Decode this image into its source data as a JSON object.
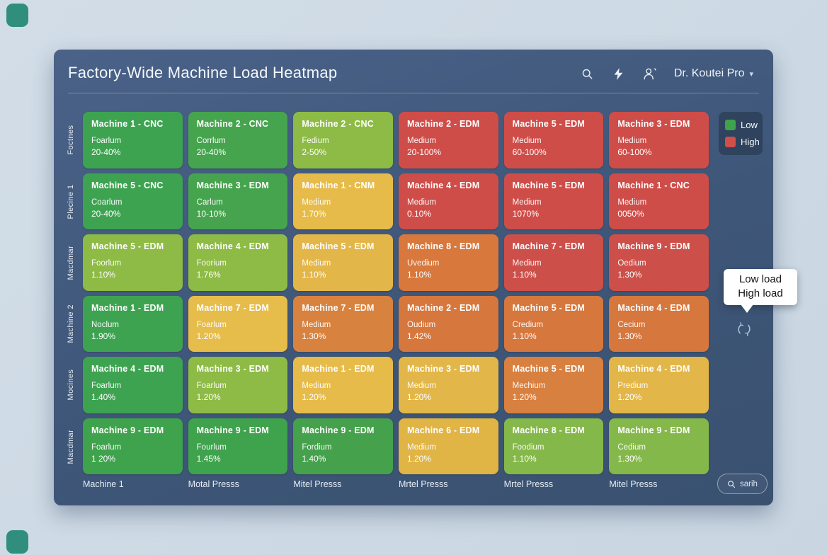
{
  "header": {
    "title": "Factory-Wide Machine Load Heatmap",
    "user_menu": {
      "label": "Dr. Koutei Pro"
    },
    "icons": [
      "search-icon",
      "bolt-icon",
      "user-icon",
      "caret-down-icon"
    ]
  },
  "legend": {
    "items": [
      {
        "label": "Low",
        "color": "#3fa24c"
      },
      {
        "label": "High",
        "color": "#d04f4b"
      }
    ]
  },
  "tooltip": {
    "lines": [
      "Low load",
      "High load"
    ]
  },
  "footer": {
    "search_button_label": "sarih"
  },
  "colors": {
    "background": "#cdd9e4",
    "panel": "#3e5678",
    "accent_teal": "#2f8f7c",
    "green": "#3ea351",
    "light_green": "#8dbb45",
    "gold": "#e6bb49",
    "orange": "#d87a3e",
    "red": "#cf4d49"
  },
  "heatmap": {
    "row_labels": [
      "Foctnes",
      "Plecine 1",
      "Macdmar",
      "Machine 2",
      "Mocines",
      "Macdmar"
    ],
    "col_labels": [
      "Machine 1",
      "Motal Presss",
      "Mitel Presss",
      "Mrtel Presss",
      "Mrtel Presss",
      "Mitel Presss"
    ],
    "cells": [
      [
        {
          "title": "Machine 1 - CNC",
          "subtitle": "Foarlum",
          "value": "20-40%",
          "color": "#3ea351"
        },
        {
          "title": "Machine 2 - CNC",
          "subtitle": "Corrlum",
          "value": "20-40%",
          "color": "#46a44e"
        },
        {
          "title": "Machine 2 - CNC",
          "subtitle": "Fedium",
          "value": "2-50%",
          "color": "#8dbb45"
        },
        {
          "title": "Machine 2 - EDM",
          "subtitle": "Medium",
          "value": "20-100%",
          "color": "#cf4d49"
        },
        {
          "title": "Machine 5 - EDM",
          "subtitle": "Medium",
          "value": "60-100%",
          "color": "#cf4d49"
        },
        {
          "title": "Machine 3 - EDM",
          "subtitle": "Medium",
          "value": "60-100%",
          "color": "#cf4d49"
        }
      ],
      [
        {
          "title": "Machine 5 - CNC",
          "subtitle": "Coarlum",
          "value": "20-40%",
          "color": "#3ea351"
        },
        {
          "title": "Machine 3 - EDM",
          "subtitle": "Carlum",
          "value": "10-10%",
          "color": "#46a44e"
        },
        {
          "title": "Machine 1 - CNM",
          "subtitle": "Medium",
          "value": "1.70%",
          "color": "#e6bb49"
        },
        {
          "title": "Machine 4 - EDM",
          "subtitle": "Medium",
          "value": "0.10%",
          "color": "#cf4d49"
        },
        {
          "title": "Machine 5 - EDM",
          "subtitle": "Medium",
          "value": "1070%",
          "color": "#cf4d49"
        },
        {
          "title": "Machine 1 - CNC",
          "subtitle": "Medium",
          "value": "0050%",
          "color": "#cf4d49"
        }
      ],
      [
        {
          "title": "Machine 5 - EDM",
          "subtitle": "Foorlum",
          "value": "1.10%",
          "color": "#8dbb45"
        },
        {
          "title": "Machine 4 - EDM",
          "subtitle": "Foorium",
          "value": "1.76%",
          "color": "#8dbb45"
        },
        {
          "title": "Machine 5 - EDM",
          "subtitle": "Medium",
          "value": "1.10%",
          "color": "#e3b64a"
        },
        {
          "title": "Machine 8 - EDM",
          "subtitle": "Uvedium",
          "value": "1.10%",
          "color": "#d8783c"
        },
        {
          "title": "Machine 7 - EDM",
          "subtitle": "Medium",
          "value": "1.10%",
          "color": "#cd4f49"
        },
        {
          "title": "Machine 9 - EDM",
          "subtitle": "Oedium",
          "value": "1.30%",
          "color": "#cd4f49"
        }
      ],
      [
        {
          "title": "Machine 1 - EDM",
          "subtitle": "Noclum",
          "value": "1.90%",
          "color": "#3ea351"
        },
        {
          "title": "Machine 7 - EDM",
          "subtitle": "Foarlum",
          "value": "1.20%",
          "color": "#e6bc4a"
        },
        {
          "title": "Machine 7 - EDM",
          "subtitle": "Medium",
          "value": "1.30%",
          "color": "#d8823f"
        },
        {
          "title": "Machine 2 - EDM",
          "subtitle": "Oudium",
          "value": "1.42%",
          "color": "#d6773d"
        },
        {
          "title": "Machine 5 - EDM",
          "subtitle": "Credium",
          "value": "1.10%",
          "color": "#d6773d"
        },
        {
          "title": "Machine 4 - EDM",
          "subtitle": "Cecium",
          "value": "1.30%",
          "color": "#d6773d"
        }
      ],
      [
        {
          "title": "Machine 4 - EDM",
          "subtitle": "Foarlum",
          "value": "1.40%",
          "color": "#3ea351"
        },
        {
          "title": "Machine 3 - EDM",
          "subtitle": "Foarlum",
          "value": "1.20%",
          "color": "#8dbb45"
        },
        {
          "title": "Machine 1 - EDM",
          "subtitle": "Medium",
          "value": "1.20%",
          "color": "#e6bb49"
        },
        {
          "title": "Machine 3 - EDM",
          "subtitle": "Medium",
          "value": "1.20%",
          "color": "#e2b648"
        },
        {
          "title": "Machine 5 - EDM",
          "subtitle": "Mechium",
          "value": "1.20%",
          "color": "#d8803f"
        },
        {
          "title": "Machine 4 - EDM",
          "subtitle": "Predium",
          "value": "1.20%",
          "color": "#e2b648"
        }
      ],
      [
        {
          "title": "Machine 9 - EDM",
          "subtitle": "Foarlum",
          "value": "1 20%",
          "color": "#3fa24c"
        },
        {
          "title": "Machine 9 - EDM",
          "subtitle": "Fourlum",
          "value": "1.45%",
          "color": "#3fa24c"
        },
        {
          "title": "Machine 9 - EDM",
          "subtitle": "Fordium",
          "value": "1.40%",
          "color": "#45a14c"
        },
        {
          "title": "Machine 6 - EDM",
          "subtitle": "Medium",
          "value": "1.20%",
          "color": "#e0b445"
        },
        {
          "title": "Machine 8 - EDM",
          "subtitle": "Foodium",
          "value": "1.10%",
          "color": "#85b84a"
        },
        {
          "title": "Machine 9 - EDM",
          "subtitle": "Cedium",
          "value": "1.30%",
          "color": "#85b84a"
        }
      ]
    ]
  }
}
